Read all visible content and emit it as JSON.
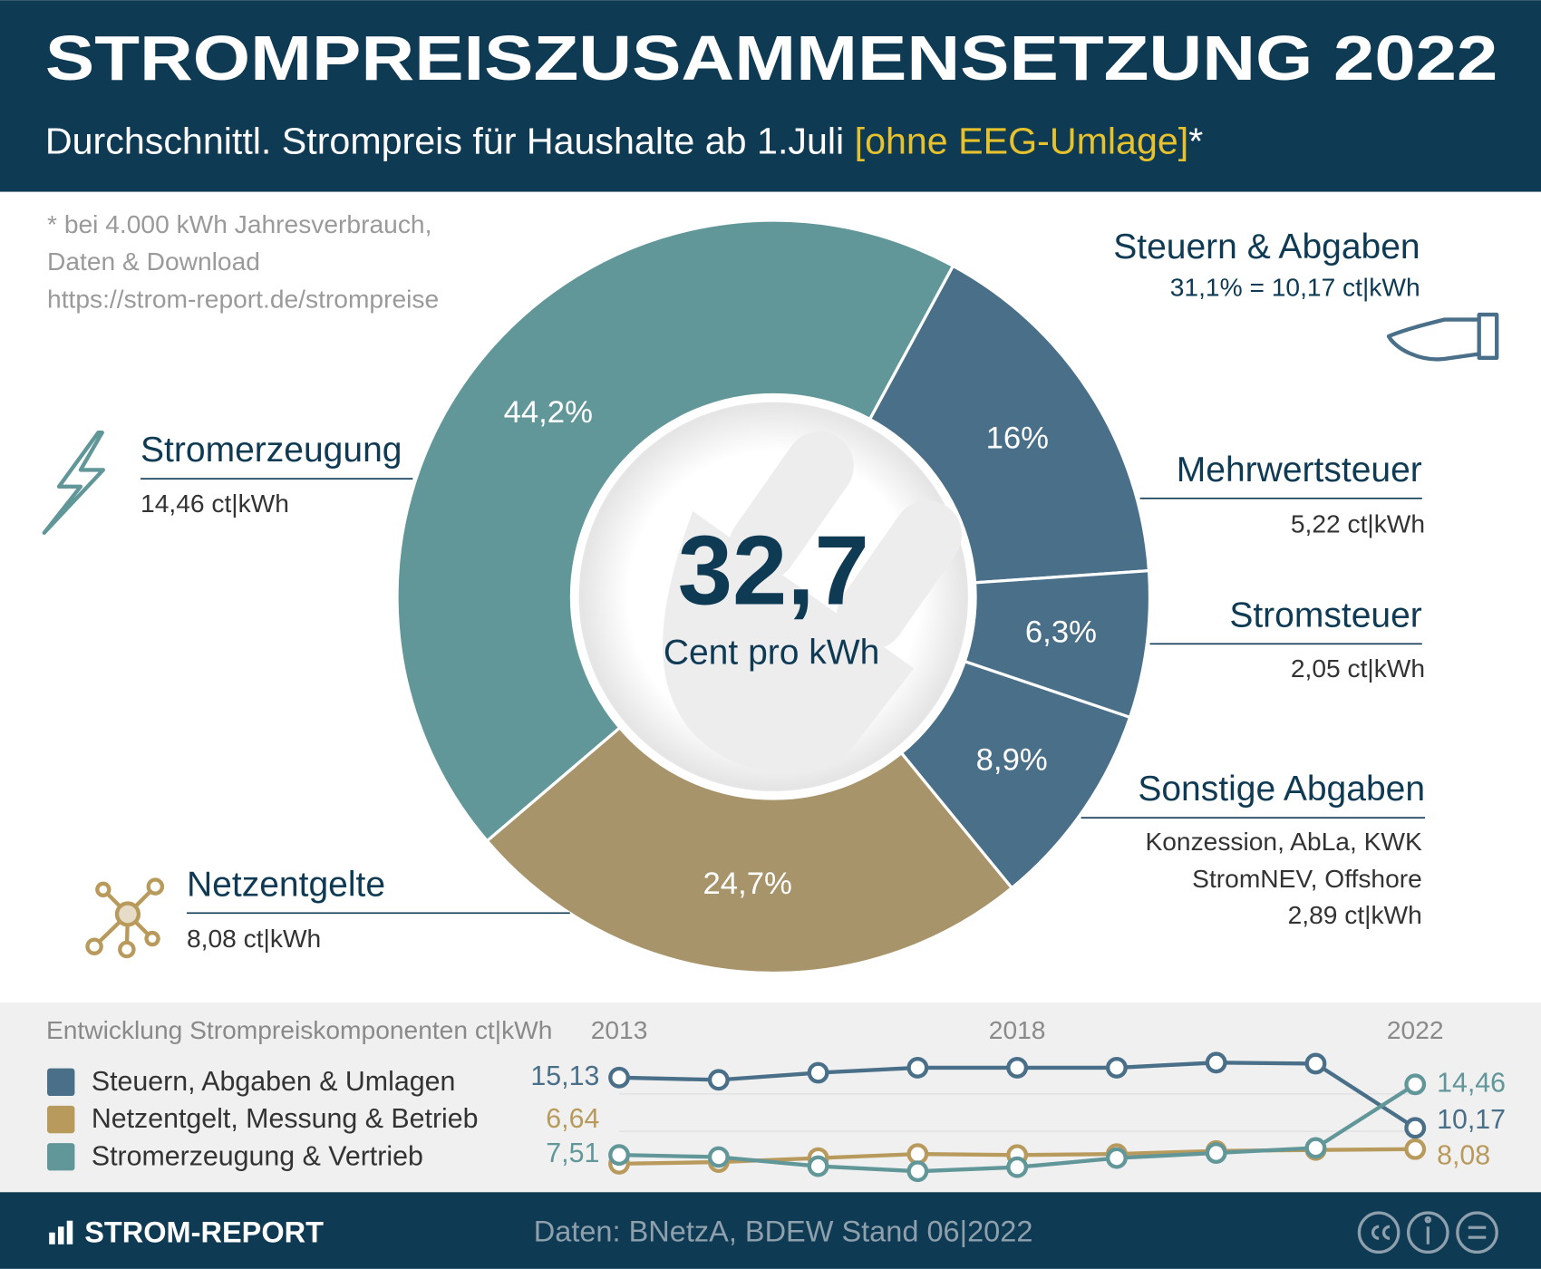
{
  "header": {
    "title": "STROMPREISZUSAMMENSETZUNG 2022",
    "subtitle": "Durchschnittl. Strompreis für Haushalte ab 1.Juli ",
    "subtitle_highlight": "[ohne EEG-Umlage]",
    "subtitle_suffix": "*"
  },
  "note": [
    "* bei 4.000 kWh Jahresverbrauch,",
    "Daten & Download",
    "https://strom-report.de/strompreise"
  ],
  "chart_data": [
    {
      "type": "donut",
      "categories": [
        "Mehrwertsteuer",
        "Stromsteuer",
        "Sonstige Abgaben",
        "Netzentgelte",
        "Stromerzeugung"
      ],
      "values": [
        16,
        6.3,
        8.9,
        24.7,
        44.2
      ],
      "value_labels": [
        "16%",
        "6,3%",
        "8,9%",
        "24,7%",
        "44,2%"
      ],
      "colors": [
        "#4a6f88",
        "#4a6f88",
        "#4a6f88",
        "#a8946a",
        "#62979a"
      ],
      "details": [
        [
          "5,22 ct|kWh"
        ],
        [
          "2,05 ct|kWh"
        ],
        [
          "Konzession, AbLa, KWK",
          "StromNEV, Offshore",
          "2,89 ct|kWh"
        ],
        [
          "8,08 ct|kWh"
        ],
        [
          "14,46 ct|kWh"
        ]
      ],
      "group": {
        "title": "Steuern & Abgaben",
        "detail": "31,1% = 10,17 ct|kWh"
      },
      "center_value": {
        "value": 32.7,
        "label": "32,7"
      },
      "center_unit": "Cent pro kWh"
    },
    {
      "type": "line",
      "title": "Entwicklung Strompreiskomponenten ct|kWh",
      "categories": [
        "2013",
        null,
        null,
        null,
        "2018",
        null,
        null,
        null,
        "2022"
      ],
      "ylim": [
        5,
        17
      ],
      "series": [
        {
          "name": "Steuern, Abgaben & Umlagen",
          "color": "#4a6f88",
          "values": [
            15.13,
            14.9,
            15.6,
            16.1,
            16.1,
            16.1,
            16.6,
            16.5,
            10.17
          ],
          "value_labels": [
            "15,13",
            null,
            null,
            null,
            null,
            null,
            null,
            null,
            "10,17"
          ]
        },
        {
          "name": "Netzentgelt, Messung & Betrieb",
          "color": "#b89a5c",
          "values": [
            6.64,
            6.8,
            7.2,
            7.6,
            7.5,
            7.6,
            7.9,
            8.0,
            8.08
          ],
          "value_labels": [
            "6,64",
            null,
            null,
            null,
            null,
            null,
            null,
            null,
            "8,08"
          ]
        },
        {
          "name": "Stromerzeugung & Vertrieb",
          "color": "#62979a",
          "values": [
            7.51,
            7.3,
            6.4,
            5.9,
            6.3,
            7.2,
            7.7,
            8.2,
            14.46
          ],
          "value_labels": [
            "7,51",
            null,
            null,
            null,
            null,
            null,
            null,
            null,
            "14,46"
          ]
        }
      ]
    }
  ],
  "footer": {
    "brand": "STROM-REPORT",
    "source": "Daten: BNetzA, BDEW  Stand 06|2022"
  }
}
